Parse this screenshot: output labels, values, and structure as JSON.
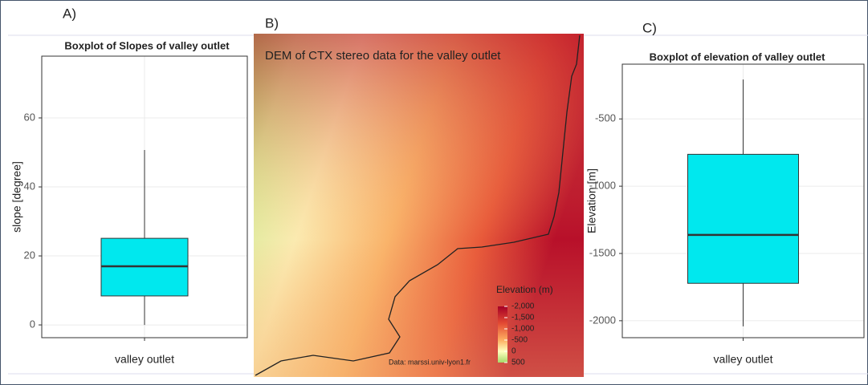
{
  "chart_data": [
    {
      "type": "boxplot",
      "panel": "A)",
      "title": "Boxplot of Slopes of valley outlet",
      "ylabel": "slope [degree]",
      "categories": [
        "valley outlet"
      ],
      "values": [
        {
          "min": 0,
          "q1": 8.4,
          "median": 17,
          "q3": 25.1,
          "max": 50.7
        }
      ],
      "color": "#00e8ee",
      "ylim": [
        -3.7,
        77.9
      ],
      "yticks": [
        0,
        20,
        40,
        60
      ],
      "grid": true
    },
    {
      "type": "map",
      "panel": "B)",
      "title": "DEM of CTX stereo data for the valley outlet",
      "source": "Data: marssi.univ-lyon1.fr",
      "colorbar": {
        "title": "Elevation (m)",
        "lim": [
          -2000,
          500
        ],
        "ticks": [
          {
            "value": -2000,
            "label": "-2,000"
          },
          {
            "value": -1500,
            "label": "-1,500"
          },
          {
            "value": -1000,
            "label": "-1,000"
          },
          -500,
          0,
          500
        ]
      }
    },
    {
      "type": "boxplot",
      "panel": "C)",
      "title": "Boxplot of elevation of valley outlet",
      "ylabel": "Elevation [m]",
      "categories": [
        "valley outlet"
      ],
      "values": [
        {
          "min": -2042,
          "q1": -1722,
          "median": -1362,
          "q3": -763,
          "max": -207
        }
      ],
      "color": "#00e8ee",
      "ylim": [
        -2126,
        -93
      ],
      "yticks": [
        -2000,
        -1500,
        -1000,
        -500
      ],
      "grid": true
    }
  ]
}
